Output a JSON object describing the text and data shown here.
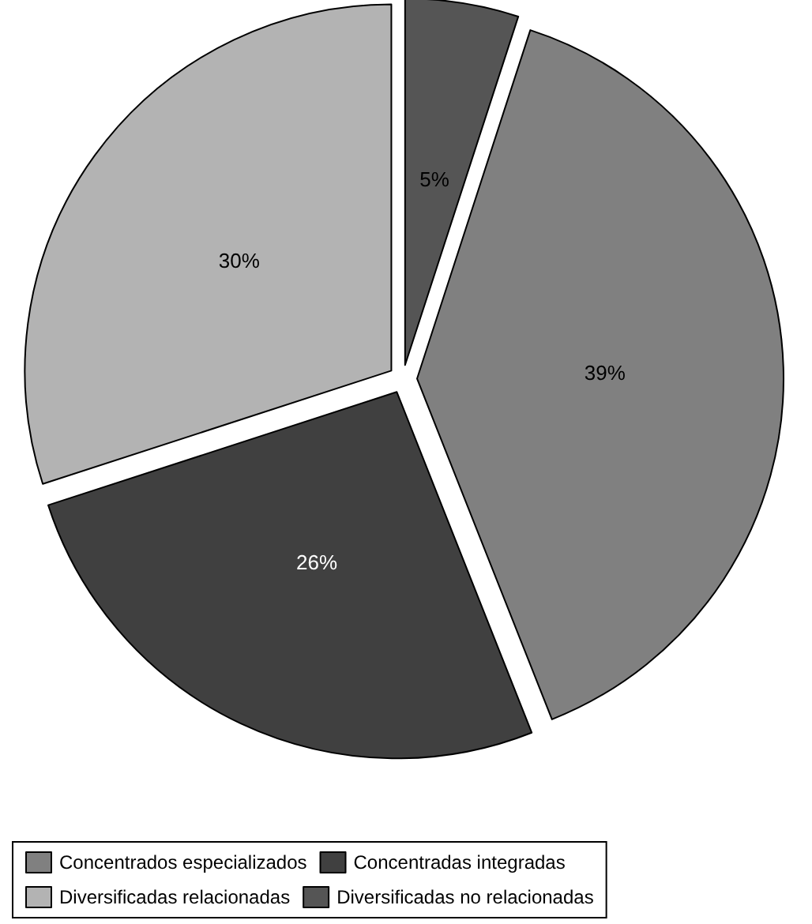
{
  "chart_data": {
    "type": "pie",
    "categories": [
      "Concentrados especializados",
      "Concentradas integradas",
      "Diversificadas relacionadas",
      "Diversificadas no relacionadas"
    ],
    "values": [
      39,
      26,
      30,
      5
    ],
    "colors": [
      "#808080",
      "#404040",
      "#b3b3b3",
      "#555555"
    ],
    "value_labels": [
      "39%",
      "26%",
      "30%",
      "5%"
    ],
    "legend": "bottom"
  }
}
